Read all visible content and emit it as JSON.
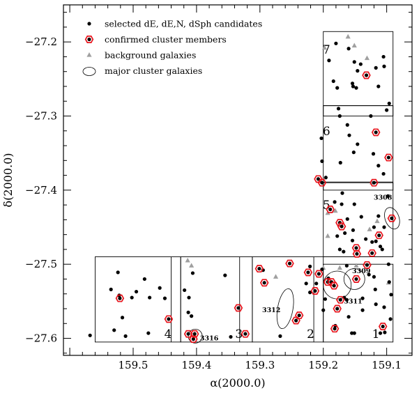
{
  "chart_data": {
    "type": "scatter",
    "xlabel": "α(2000.0)",
    "ylabel": "δ(2000.0)",
    "xlim": [
      159.61,
      159.06
    ],
    "ylim": [
      -27.623,
      -27.15
    ],
    "x_ticks": [
      {
        "value": 159.5,
        "label": "159.5"
      },
      {
        "value": 159.4,
        "label": "159.4"
      },
      {
        "value": 159.3,
        "label": "159.3"
      },
      {
        "value": 159.2,
        "label": "159.2"
      },
      {
        "value": 159.1,
        "label": "159.1"
      }
    ],
    "y_ticks": [
      {
        "value": -27.2,
        "label": "−27.2"
      },
      {
        "value": -27.3,
        "label": "−27.3"
      },
      {
        "value": -27.4,
        "label": "−27.4"
      },
      {
        "value": -27.5,
        "label": "−27.5"
      },
      {
        "value": -27.6,
        "label": "−27.6"
      }
    ],
    "legend": {
      "placement": "top-left",
      "entries": [
        {
          "label": "selected dE, dE,N, dSph candidates",
          "marker": "dot"
        },
        {
          "label": "confirmed cluster members",
          "marker": "hexagon"
        },
        {
          "label": "background galaxies",
          "marker": "triangle"
        },
        {
          "label": "major cluster galaxies",
          "marker": "ellipse"
        }
      ]
    },
    "colors": {
      "member_hexagon": "#e8141c",
      "background_triangle": "#a0a0a0",
      "dots": "#000000"
    },
    "fields": [
      {
        "label": "1",
        "ra_range": [
          159.2,
          159.09
        ],
        "dec_range": [
          -27.605,
          -27.5
        ],
        "label_pos": [
          159.117,
          -27.594
        ]
      },
      {
        "label": "2",
        "ra_range": [
          159.312,
          159.2
        ],
        "dec_range": [
          -27.605,
          -27.49
        ],
        "label_pos": [
          159.22,
          -27.594
        ]
      },
      {
        "label": "3",
        "ra_range": [
          159.425,
          159.312
        ],
        "dec_range": [
          -27.605,
          -27.49
        ],
        "label_pos": [
          159.333,
          -27.594
        ]
      },
      {
        "label": "4",
        "ra_range": [
          159.56,
          159.425
        ],
        "dec_range": [
          -27.605,
          -27.49
        ],
        "label_pos": [
          159.445,
          -27.594
        ]
      },
      {
        "label": "5",
        "ra_range": [
          159.2,
          159.09
        ],
        "dec_range": [
          -27.49,
          -27.39
        ],
        "label_pos": [
          159.195,
          -27.42
        ]
      },
      {
        "label": "6",
        "ra_range": [
          159.2,
          159.09
        ],
        "dec_range": [
          -27.4,
          -27.286
        ],
        "label_pos": [
          159.195,
          -27.32
        ]
      },
      {
        "label": "7",
        "ra_range": [
          159.2,
          159.09
        ],
        "dec_range": [
          -27.3,
          -27.186
        ],
        "label_pos": [
          159.195,
          -27.21
        ]
      }
    ],
    "field_dividers": [
      {
        "x": [
          159.44,
          159.44
        ],
        "y": [
          -27.605,
          -27.49
        ]
      },
      {
        "x": [
          159.332,
          159.332
        ],
        "y": [
          -27.605,
          -27.49
        ]
      },
      {
        "x": [
          159.215,
          159.215
        ],
        "y": [
          -27.605,
          -27.49
        ]
      },
      {
        "x": [
          159.2,
          159.09
        ],
        "y": [
          -27.49,
          -27.49
        ]
      },
      {
        "x": [
          159.2,
          159.09
        ],
        "y": [
          -27.389,
          -27.389
        ]
      },
      {
        "x": [
          159.2,
          159.09
        ],
        "y": [
          -27.286,
          -27.286
        ]
      }
    ],
    "major_galaxies": [
      {
        "label": "3308",
        "ra": 159.0915,
        "dec": -27.438,
        "label_pos": [
          159.106,
          -27.41
        ]
      },
      {
        "label": "3309",
        "ra": 159.151,
        "dec": -27.52,
        "label_pos": [
          159.14,
          -27.509
        ]
      },
      {
        "label": "3311",
        "ra": 159.178,
        "dec": -27.528,
        "label_pos": [
          159.153,
          -27.55
        ]
      },
      {
        "label": "3312",
        "ra": 159.26,
        "dec": -27.56,
        "label_pos": [
          159.282,
          -27.562
        ]
      },
      {
        "label": "3316",
        "ra": 159.402,
        "dec": -27.597,
        "label_pos": [
          159.38,
          -27.6
        ]
      }
    ],
    "confirmed_members": [
      [
        159.521,
        -27.546
      ],
      [
        159.444,
        -27.574
      ],
      [
        159.413,
        -27.594
      ],
      [
        159.405,
        -27.601
      ],
      [
        159.403,
        -27.594
      ],
      [
        159.334,
        -27.559
      ],
      [
        159.323,
        -27.594
      ],
      [
        159.301,
        -27.506
      ],
      [
        159.293,
        -27.525
      ],
      [
        159.253,
        -27.499
      ],
      [
        159.238,
        -27.569
      ],
      [
        159.243,
        -27.576
      ],
      [
        159.224,
        -27.511
      ],
      [
        159.213,
        -27.536
      ],
      [
        159.207,
        -27.513
      ],
      [
        159.193,
        -27.524
      ],
      [
        159.187,
        -27.524
      ],
      [
        159.183,
        -27.529
      ],
      [
        159.178,
        -27.56
      ],
      [
        159.182,
        -27.587
      ],
      [
        159.173,
        -27.548
      ],
      [
        159.148,
        -27.52
      ],
      [
        159.106,
        -27.584
      ],
      [
        159.092,
        -27.438
      ],
      [
        159.208,
        -27.385
      ],
      [
        159.202,
        -27.39
      ],
      [
        159.189,
        -27.426
      ],
      [
        159.174,
        -27.444
      ],
      [
        159.171,
        -27.449
      ],
      [
        159.148,
        -27.478
      ],
      [
        159.147,
        -27.486
      ],
      [
        159.131,
        -27.501
      ],
      [
        159.112,
        -27.461
      ],
      [
        159.123,
        -27.485
      ],
      [
        159.12,
        -27.39
      ],
      [
        159.097,
        -27.356
      ],
      [
        159.117,
        -27.322
      ],
      [
        159.132,
        -27.245
      ]
    ],
    "background_galaxies": [
      [
        159.414,
        -27.495
      ],
      [
        159.408,
        -27.502
      ],
      [
        159.275,
        -27.517
      ],
      [
        159.193,
        -27.462
      ],
      [
        159.2,
        -27.505
      ],
      [
        159.174,
        -27.505
      ],
      [
        159.148,
        -27.502
      ],
      [
        159.097,
        -27.525
      ],
      [
        159.193,
        -27.431
      ],
      [
        159.181,
        -27.428
      ],
      [
        159.115,
        -27.442
      ],
      [
        159.127,
        -27.453
      ],
      [
        159.123,
        -27.39
      ],
      [
        159.198,
        -27.208
      ],
      [
        159.161,
        -27.193
      ],
      [
        159.151,
        -27.205
      ],
      [
        159.131,
        -27.222
      ]
    ],
    "candidates": [
      [
        159.568,
        -27.596
      ],
      [
        159.535,
        -27.534
      ],
      [
        159.53,
        -27.589
      ],
      [
        159.524,
        -27.511
      ],
      [
        159.522,
        -27.542
      ],
      [
        159.517,
        -27.572
      ],
      [
        159.512,
        -27.597
      ],
      [
        159.502,
        -27.545
      ],
      [
        159.495,
        -27.537
      ],
      [
        159.482,
        -27.52
      ],
      [
        159.476,
        -27.593
      ],
      [
        159.474,
        -27.545
      ],
      [
        159.458,
        -27.532
      ],
      [
        159.45,
        -27.546
      ],
      [
        159.419,
        -27.535
      ],
      [
        159.413,
        -27.565
      ],
      [
        159.408,
        -27.57
      ],
      [
        159.406,
        -27.512
      ],
      [
        159.412,
        -27.545
      ],
      [
        159.355,
        -27.515
      ],
      [
        159.346,
        -27.598
      ],
      [
        159.295,
        -27.508
      ],
      [
        159.268,
        -27.597
      ],
      [
        159.227,
        -27.526
      ],
      [
        159.221,
        -27.503
      ],
      [
        159.221,
        -27.538
      ],
      [
        159.211,
        -27.526
      ],
      [
        159.202,
        -27.507
      ],
      [
        159.2,
        -27.562
      ],
      [
        159.197,
        -27.547
      ],
      [
        159.192,
        -27.519
      ],
      [
        159.181,
        -27.583
      ],
      [
        159.167,
        -27.545
      ],
      [
        159.163,
        -27.502
      ],
      [
        159.163,
        -27.548
      ],
      [
        159.16,
        -27.571
      ],
      [
        159.155,
        -27.593
      ],
      [
        159.151,
        -27.593
      ],
      [
        159.138,
        -27.562
      ],
      [
        159.138,
        -27.546
      ],
      [
        159.128,
        -27.514
      ],
      [
        159.12,
        -27.517
      ],
      [
        159.118,
        -27.534
      ],
      [
        159.117,
        -27.554
      ],
      [
        159.11,
        -27.593
      ],
      [
        159.104,
        -27.558
      ],
      [
        159.103,
        -27.592
      ],
      [
        159.097,
        -27.5
      ],
      [
        159.094,
        -27.574
      ],
      [
        159.093,
        -27.541
      ],
      [
        159.096,
        -27.524
      ],
      [
        159.17,
        -27.404
      ],
      [
        159.171,
        -27.419
      ],
      [
        159.178,
        -27.462
      ],
      [
        159.166,
        -27.458
      ],
      [
        159.162,
        -27.439
      ],
      [
        159.151,
        -27.419
      ],
      [
        159.153,
        -27.454
      ],
      [
        159.154,
        -27.468
      ],
      [
        159.14,
        -27.436
      ],
      [
        159.133,
        -27.466
      ],
      [
        159.123,
        -27.47
      ],
      [
        159.12,
        -27.45
      ],
      [
        159.113,
        -27.435
      ],
      [
        159.11,
        -27.476
      ],
      [
        159.098,
        -27.408
      ],
      [
        159.104,
        -27.45
      ],
      [
        159.107,
        -27.48
      ],
      [
        159.117,
        -27.469
      ],
      [
        159.168,
        -27.483
      ],
      [
        159.174,
        -27.48
      ],
      [
        159.182,
        -27.416
      ],
      [
        159.203,
        -27.33
      ],
      [
        159.202,
        -27.361
      ],
      [
        159.196,
        -27.383
      ],
      [
        159.174,
        -27.3
      ],
      [
        159.173,
        -27.363
      ],
      [
        159.162,
        -27.312
      ],
      [
        159.152,
        -27.349
      ],
      [
        159.159,
        -27.326
      ],
      [
        159.146,
        -27.338
      ],
      [
        159.125,
        -27.3
      ],
      [
        159.121,
        -27.351
      ],
      [
        159.113,
        -27.367
      ],
      [
        159.1,
        -27.292
      ],
      [
        159.105,
        -27.378
      ],
      [
        159.191,
        -27.225
      ],
      [
        159.184,
        -27.253
      ],
      [
        159.178,
        -27.262
      ],
      [
        159.176,
        -27.29
      ],
      [
        159.154,
        -27.256
      ],
      [
        159.151,
        -27.227
      ],
      [
        159.153,
        -27.26
      ],
      [
        159.148,
        -27.262
      ],
      [
        159.146,
        -27.239
      ],
      [
        159.141,
        -27.23
      ],
      [
        159.117,
        -27.235
      ],
      [
        159.113,
        -27.26
      ],
      [
        159.105,
        -27.22
      ],
      [
        159.104,
        -27.233
      ],
      [
        159.096,
        -27.283
      ],
      [
        159.18,
        -27.202
      ],
      [
        159.16,
        -27.209
      ]
    ]
  }
}
